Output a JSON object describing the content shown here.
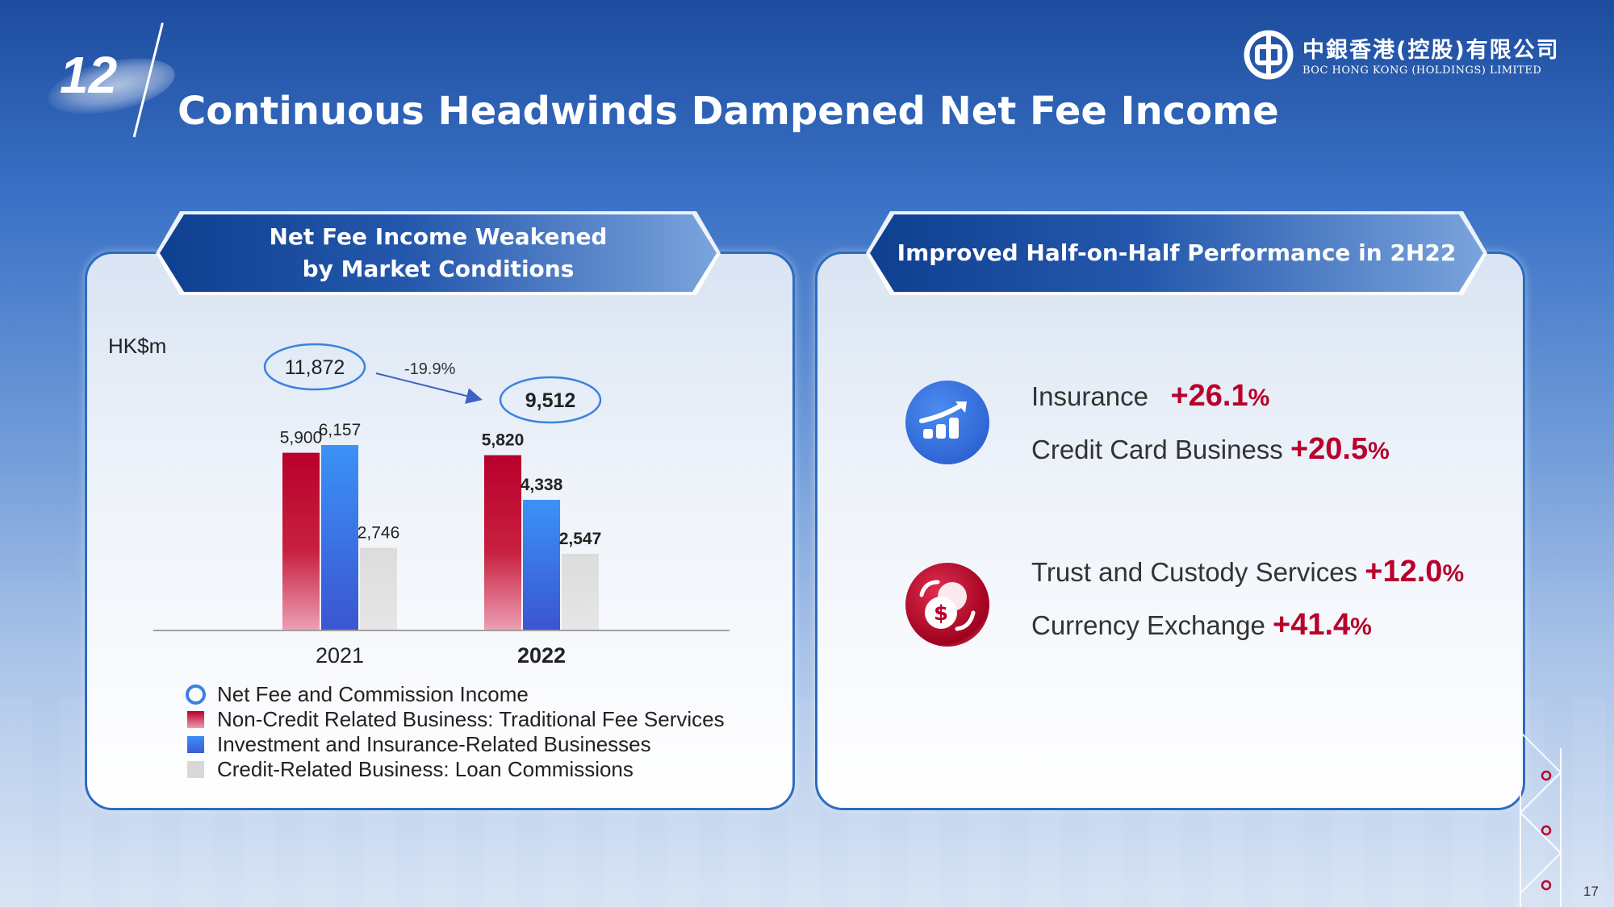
{
  "slide": {
    "number": "12",
    "title": "Continuous Headwinds Dampened Net Fee Income",
    "page": "17"
  },
  "logo": {
    "name_cn": "中銀香港(控股)有限公司",
    "name_en": "BOC HONG KONG (HOLDINGS) LIMITED",
    "icon": "boc-logo-icon"
  },
  "left_panel": {
    "banner": [
      "Net Fee Income Weakened",
      "by Market Conditions"
    ]
  },
  "right_panel": {
    "banner": "Improved Half-on-Half Performance in 2H22",
    "groups": [
      {
        "icon": "growth-chart-icon",
        "items": [
          {
            "label": "Insurance",
            "value": "+26.1",
            "unit": "%"
          },
          {
            "label": "Credit Card Business",
            "value": "+20.5",
            "unit": "%"
          }
        ]
      },
      {
        "icon": "currency-exchange-icon",
        "items": [
          {
            "label": "Trust and Custody Services",
            "value": "+12.0",
            "unit": "%"
          },
          {
            "label": "Currency Exchange",
            "value": "+41.4",
            "unit": "%"
          }
        ]
      }
    ]
  },
  "colors": {
    "red": "#b8002b",
    "blue": "#3b82e0",
    "gray": "#d8d8d8",
    "navy": "#1d4c9e"
  },
  "chart_data": {
    "type": "bar",
    "ylabel": "HK$m",
    "categories": [
      "2021",
      "2022"
    ],
    "series": [
      {
        "name": "Non-Credit Related Business: Traditional Fee Services",
        "values": [
          5900,
          5820
        ],
        "labels": [
          "5,900",
          "5,820"
        ]
      },
      {
        "name": "Investment and Insurance-Related Businesses",
        "values": [
          6157,
          4338
        ],
        "labels": [
          "6,157",
          "4,338"
        ]
      },
      {
        "name": "Credit-Related Business: Loan Commissions",
        "values": [
          2746,
          2547
        ],
        "labels": [
          "2,746",
          "2,547"
        ]
      }
    ],
    "totals": {
      "name": "Net Fee and Commission Income",
      "values": [
        11872,
        9512
      ],
      "labels": [
        "11,872",
        "9,512"
      ]
    },
    "change_label": "-19.9%",
    "ylim": [
      0,
      6157
    ],
    "legend_position": "bottom"
  }
}
